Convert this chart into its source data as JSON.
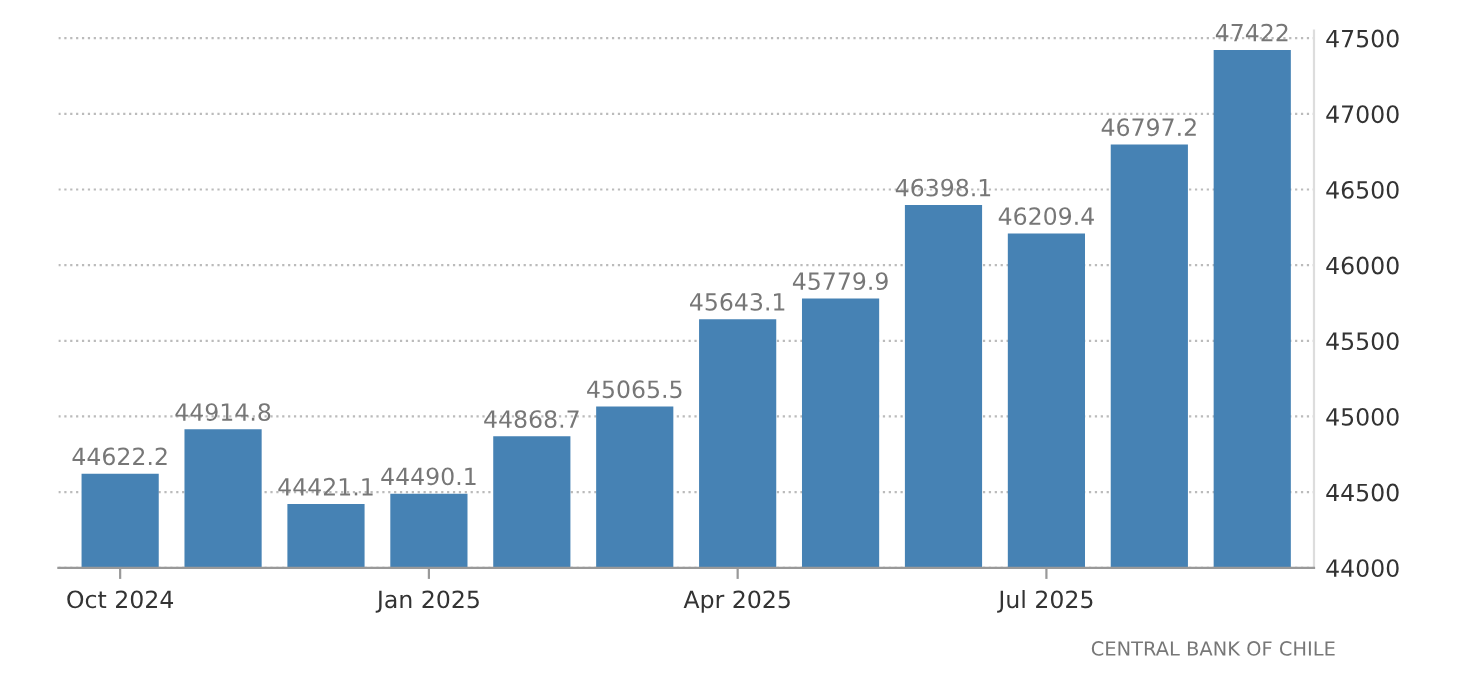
{
  "chart_data": {
    "type": "bar",
    "categories": [
      "Oct 2024",
      null,
      null,
      "Jan 2025",
      null,
      null,
      "Apr 2025",
      null,
      null,
      "Jul 2025",
      null,
      null
    ],
    "values": [
      44622.2,
      44914.8,
      44421.1,
      44490.1,
      44868.7,
      45065.5,
      45643.1,
      45779.9,
      46398.1,
      46209.4,
      46797.2,
      47422
    ],
    "color": "#4682b4",
    "data_labels": true,
    "ylim": [
      44000,
      47550
    ],
    "yticks": [
      44000,
      44500,
      45000,
      45500,
      46000,
      46500,
      47000,
      47500
    ],
    "grid": "y",
    "annotations": [
      "CENTRAL BANK OF CHILE"
    ]
  }
}
